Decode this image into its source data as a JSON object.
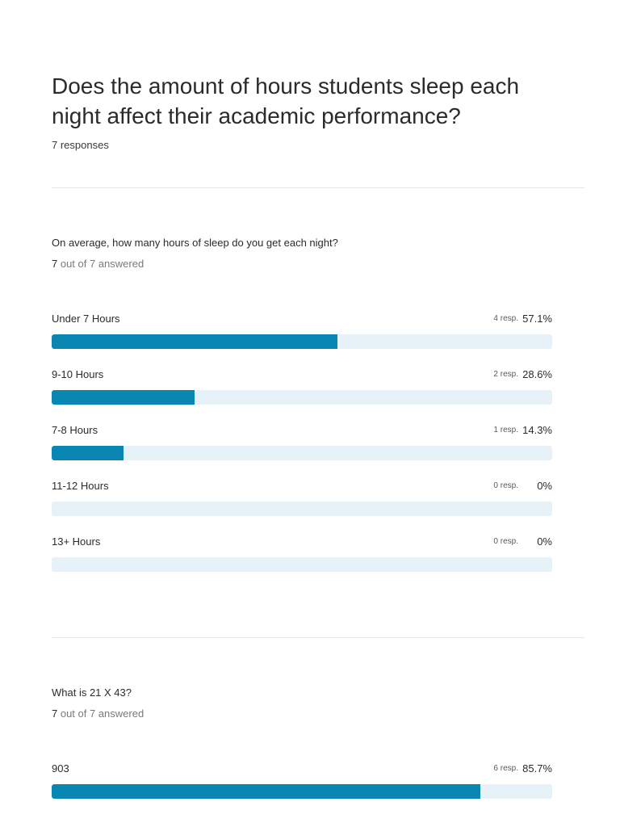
{
  "survey": {
    "title": "Does the amount of hours students sleep each night affect their academic performance?",
    "responses_label": "7 responses"
  },
  "questions": [
    {
      "text": "On average, how many hours of sleep do you get each night?",
      "answered_count": "7",
      "answered_rest": " out of 7 answered",
      "options": [
        {
          "label": "Under 7 Hours",
          "resp": "4 resp.",
          "pct": "57.1%",
          "fraction": 0.571
        },
        {
          "label": "9-10 Hours",
          "resp": "2 resp.",
          "pct": "28.6%",
          "fraction": 0.286
        },
        {
          "label": "7-8 Hours",
          "resp": "1 resp.",
          "pct": "14.3%",
          "fraction": 0.143
        },
        {
          "label": "11-12 Hours",
          "resp": "0 resp.",
          "pct": "0%",
          "fraction": 0
        },
        {
          "label": "13+ Hours",
          "resp": "0 resp.",
          "pct": "0%",
          "fraction": 0
        }
      ]
    },
    {
      "text": "What is 21 X 43?",
      "answered_count": "7",
      "answered_rest": " out of 7 answered",
      "options": [
        {
          "label": "903",
          "resp": "6 resp.",
          "pct": "85.7%",
          "fraction": 0.857
        }
      ]
    }
  ],
  "colors": {
    "bar_fill": "#0a86b3",
    "bar_track": "#e6f2f7"
  }
}
